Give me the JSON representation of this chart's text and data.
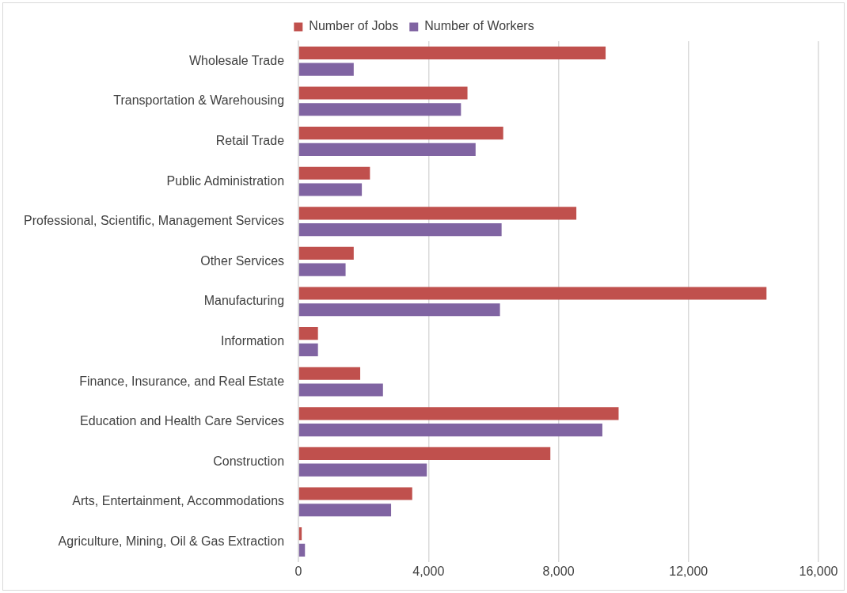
{
  "chart_data": {
    "type": "bar",
    "orientation": "horizontal",
    "categories": [
      "Wholesale Trade",
      "Transportation & Warehousing",
      "Retail Trade",
      "Public Administration",
      "Professional, Scientific, Management Services",
      "Other Services",
      "Manufacturing",
      "Information",
      "Finance, Insurance, and Real Estate",
      "Education and Health Care Services",
      "Construction",
      "Arts, Entertainment, Accommodations",
      "Agriculture, Mining, Oil & Gas Extraction"
    ],
    "series": [
      {
        "name": "Number of Jobs",
        "color": "#c0504d",
        "values": [
          9450,
          5200,
          6300,
          2200,
          8550,
          1700,
          14400,
          600,
          1900,
          9850,
          7750,
          3500,
          100
        ]
      },
      {
        "name": "Number of Workers",
        "color": "#8064a2",
        "values": [
          1700,
          5000,
          5450,
          1950,
          6250,
          1450,
          6200,
          600,
          2600,
          9350,
          3950,
          2850,
          200
        ]
      }
    ],
    "xlim": [
      0,
      16000
    ],
    "xticks": [
      {
        "value": 0,
        "label": "0"
      },
      {
        "value": 4000,
        "label": "4,000"
      },
      {
        "value": 8000,
        "label": "8,000"
      },
      {
        "value": 12000,
        "label": "12,000"
      },
      {
        "value": 16000,
        "label": "16,000"
      }
    ],
    "grid": "x",
    "legend": "top"
  }
}
